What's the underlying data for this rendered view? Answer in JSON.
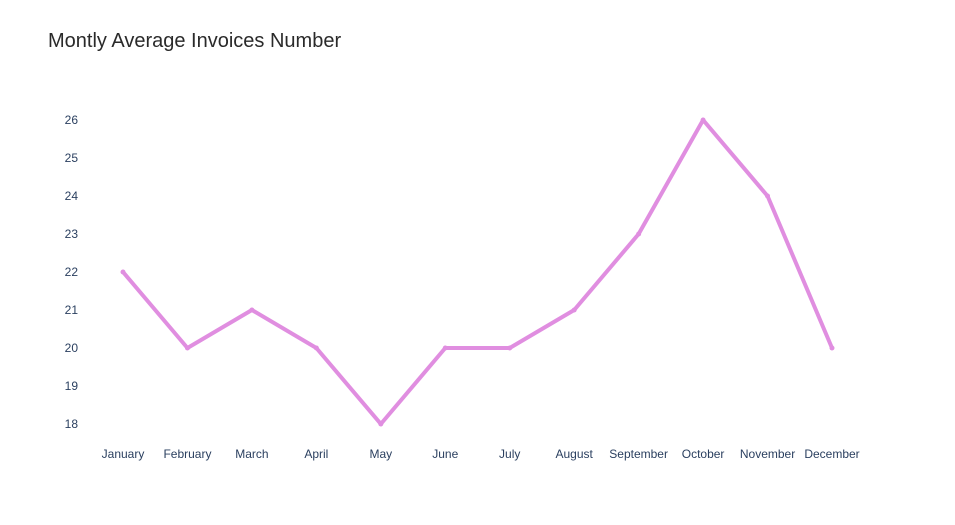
{
  "chart_data": {
    "type": "line",
    "title": "Montly Average Invoices Number",
    "xlabel": "",
    "ylabel": "",
    "categories": [
      "January",
      "February",
      "March",
      "April",
      "May",
      "June",
      "July",
      "August",
      "September",
      "October",
      "November",
      "December"
    ],
    "series": [
      {
        "values": [
          22,
          20,
          21,
          20,
          18,
          20,
          20,
          21,
          23,
          26,
          24,
          20
        ]
      }
    ],
    "yticks": [
      18,
      19,
      20,
      21,
      22,
      23,
      24,
      25,
      26
    ],
    "ylim": [
      18,
      26
    ],
    "grid": false,
    "legend": "none",
    "line_color": "#e08ee0"
  }
}
